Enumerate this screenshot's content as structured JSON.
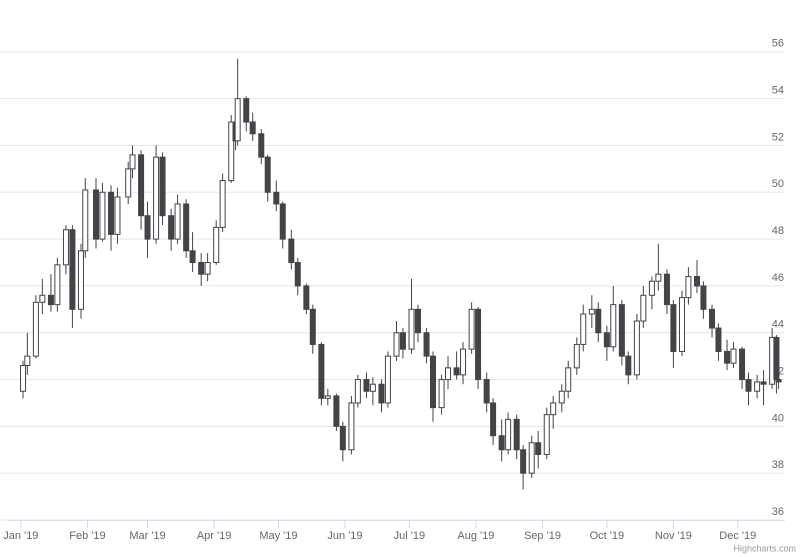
{
  "chart_data": {
    "type": "candlestick",
    "credits": "Highcharts.com",
    "xlim": [
      "2018-12-26",
      "2019-12-23"
    ],
    "xticks": [
      {
        "value": "2019-01-01",
        "label": "Jan '19"
      },
      {
        "value": "2019-02-01",
        "label": "Feb '19"
      },
      {
        "value": "2019-03-01",
        "label": "Mar '19"
      },
      {
        "value": "2019-04-01",
        "label": "Apr '19"
      },
      {
        "value": "2019-05-01",
        "label": "May '19"
      },
      {
        "value": "2019-06-01",
        "label": "Jun '19"
      },
      {
        "value": "2019-07-01",
        "label": "Jul '19"
      },
      {
        "value": "2019-08-01",
        "label": "Aug '19"
      },
      {
        "value": "2019-09-01",
        "label": "Sep '19"
      },
      {
        "value": "2019-10-01",
        "label": "Oct '19"
      },
      {
        "value": "2019-11-01",
        "label": "Nov '19"
      },
      {
        "value": "2019-12-01",
        "label": "Dec '19"
      }
    ],
    "ylim": [
      36,
      58
    ],
    "yticks": [
      36,
      38,
      40,
      42,
      44,
      46,
      48,
      50,
      52,
      54,
      56
    ],
    "grid": true,
    "up_color": "#ffffff",
    "down_color": "#434348",
    "line_color": "#434348",
    "x": [
      "2019-01-02",
      "2019-01-04",
      "2019-01-08",
      "2019-01-11",
      "2019-01-15",
      "2019-01-18",
      "2019-01-22",
      "2019-01-25",
      "2019-01-29",
      "2019-01-31",
      "2019-02-05",
      "2019-02-08",
      "2019-02-12",
      "2019-02-15",
      "2019-02-20",
      "2019-02-22",
      "2019-02-26",
      "2019-03-01",
      "2019-03-05",
      "2019-03-08",
      "2019-03-12",
      "2019-03-15",
      "2019-03-19",
      "2019-03-22",
      "2019-03-26",
      "2019-03-29",
      "2019-04-02",
      "2019-04-05",
      "2019-04-09",
      "2019-04-11",
      "2019-04-12",
      "2019-04-16",
      "2019-04-19",
      "2019-04-23",
      "2019-04-26",
      "2019-04-30",
      "2019-05-03",
      "2019-05-07",
      "2019-05-10",
      "2019-05-14",
      "2019-05-17",
      "2019-05-21",
      "2019-05-24",
      "2019-05-28",
      "2019-05-31",
      "2019-06-04",
      "2019-06-07",
      "2019-06-11",
      "2019-06-14",
      "2019-06-18",
      "2019-06-21",
      "2019-06-25",
      "2019-06-28",
      "2019-07-02",
      "2019-07-05",
      "2019-07-09",
      "2019-07-12",
      "2019-07-16",
      "2019-07-19",
      "2019-07-23",
      "2019-07-26",
      "2019-07-30",
      "2019-08-02",
      "2019-08-06",
      "2019-08-09",
      "2019-08-13",
      "2019-08-16",
      "2019-08-20",
      "2019-08-23",
      "2019-08-27",
      "2019-08-30",
      "2019-09-03",
      "2019-09-06",
      "2019-09-10",
      "2019-09-13",
      "2019-09-17",
      "2019-09-20",
      "2019-09-24",
      "2019-09-27",
      "2019-10-01",
      "2019-10-04",
      "2019-10-08",
      "2019-10-11",
      "2019-10-15",
      "2019-10-18",
      "2019-10-22",
      "2019-10-25",
      "2019-10-29",
      "2019-11-01",
      "2019-11-05",
      "2019-11-08",
      "2019-11-12",
      "2019-11-15",
      "2019-11-19",
      "2019-11-22",
      "2019-11-26",
      "2019-11-29",
      "2019-12-03",
      "2019-12-06",
      "2019-12-10",
      "2019-12-13",
      "2019-12-17",
      "2019-12-19",
      "2019-12-20"
    ],
    "open": [
      41.5,
      42.6,
      43.0,
      45.3,
      45.6,
      45.2,
      46.9,
      48.4,
      45.0,
      47.5,
      50.1,
      48.0,
      50.0,
      48.2,
      49.8,
      51.0,
      51.6,
      49.0,
      48.0,
      51.5,
      49.0,
      48.0,
      49.5,
      47.5,
      47.0,
      46.5,
      47.0,
      48.5,
      50.5,
      53.0,
      52.2,
      54.0,
      53.0,
      52.5,
      51.5,
      50.0,
      49.5,
      48.0,
      47.0,
      46.0,
      45.0,
      43.5,
      41.2,
      41.3,
      40.0,
      39.0,
      41.0,
      42.0,
      41.5,
      41.8,
      41.0,
      43.0,
      44.0,
      43.3,
      45.0,
      44.0,
      43.0,
      40.8,
      42.0,
      42.5,
      42.2,
      43.3,
      45.0,
      42.0,
      41.0,
      39.6,
      39.0,
      40.3,
      39.0,
      38.0,
      39.3,
      38.8,
      40.5,
      41.0,
      41.5,
      42.5,
      43.5,
      44.8,
      45.0,
      44.0,
      43.4,
      45.2,
      43.0,
      42.2,
      44.5,
      45.6,
      46.2,
      46.5,
      45.2,
      43.2,
      45.5,
      46.4,
      46.0,
      45.0,
      44.2,
      43.2,
      42.7,
      43.3,
      42.0,
      41.5,
      41.9,
      41.8,
      43.8,
      42.0
    ],
    "high": [
      42.8,
      44.0,
      45.6,
      46.3,
      46.5,
      47.2,
      48.6,
      48.6,
      47.8,
      50.6,
      50.6,
      50.4,
      50.3,
      50.2,
      51.3,
      52.0,
      51.8,
      49.6,
      52.0,
      51.7,
      49.3,
      49.9,
      49.7,
      48.3,
      47.4,
      47.4,
      48.8,
      50.8,
      53.3,
      53.4,
      55.7,
      54.1,
      53.4,
      52.7,
      51.6,
      50.5,
      49.6,
      48.4,
      47.2,
      46.1,
      45.2,
      43.6,
      41.6,
      41.4,
      40.2,
      41.3,
      42.2,
      42.3,
      42.1,
      42.0,
      43.2,
      44.5,
      44.2,
      46.3,
      45.2,
      44.2,
      43.2,
      42.2,
      43.0,
      43.2,
      43.6,
      45.3,
      45.1,
      42.3,
      41.2,
      40.3,
      40.6,
      40.5,
      39.2,
      39.6,
      39.8,
      40.8,
      41.3,
      41.8,
      42.8,
      43.8,
      45.2,
      45.6,
      45.3,
      44.3,
      46.0,
      45.4,
      43.2,
      44.8,
      46.0,
      46.4,
      47.8,
      46.7,
      45.4,
      45.8,
      46.8,
      47.1,
      46.2,
      45.2,
      44.4,
      43.7,
      43.6,
      43.4,
      42.3,
      42.2,
      42.4,
      44.2,
      43.9,
      42.3
    ],
    "low": [
      41.2,
      42.2,
      42.9,
      44.8,
      44.9,
      44.9,
      46.5,
      44.2,
      44.6,
      47.2,
      47.6,
      47.9,
      47.5,
      47.8,
      49.5,
      50.6,
      48.4,
      47.2,
      47.8,
      48.6,
      47.5,
      47.8,
      47.2,
      46.6,
      46.0,
      46.2,
      46.9,
      48.3,
      50.4,
      51.8,
      52.0,
      52.6,
      52.2,
      51.2,
      49.6,
      49.2,
      47.6,
      46.7,
      45.6,
      44.8,
      43.1,
      40.9,
      40.9,
      39.8,
      38.5,
      38.8,
      40.8,
      41.2,
      40.9,
      40.6,
      40.8,
      42.8,
      42.9,
      43.1,
      43.6,
      42.7,
      40.2,
      40.5,
      41.6,
      42.0,
      41.8,
      43.1,
      41.6,
      40.6,
      39.2,
      38.5,
      38.8,
      38.6,
      37.3,
      37.8,
      38.2,
      38.6,
      39.9,
      40.6,
      41.2,
      42.2,
      43.2,
      44.2,
      43.6,
      42.8,
      43.2,
      42.6,
      41.8,
      42.0,
      44.2,
      45.0,
      45.8,
      44.8,
      42.5,
      43.0,
      45.2,
      45.7,
      44.6,
      43.8,
      42.8,
      42.4,
      42.5,
      41.6,
      40.9,
      41.2,
      40.9,
      41.6,
      41.4,
      41.6
    ],
    "close": [
      42.6,
      43.0,
      45.3,
      45.6,
      45.2,
      46.9,
      48.4,
      45.0,
      47.5,
      50.1,
      48.0,
      50.0,
      48.2,
      49.8,
      51.0,
      51.6,
      49.0,
      48.0,
      51.5,
      49.0,
      48.0,
      49.5,
      47.5,
      47.0,
      46.5,
      47.0,
      48.5,
      50.5,
      53.0,
      52.2,
      54.0,
      53.0,
      52.5,
      51.5,
      50.0,
      49.5,
      48.0,
      47.0,
      46.0,
      45.0,
      43.5,
      41.2,
      41.3,
      40.0,
      39.0,
      41.0,
      42.0,
      41.5,
      41.8,
      41.0,
      43.0,
      44.0,
      43.3,
      45.0,
      44.0,
      43.0,
      40.8,
      42.0,
      42.5,
      42.2,
      43.3,
      45.0,
      42.0,
      41.0,
      39.6,
      39.0,
      40.3,
      39.0,
      38.0,
      39.3,
      38.8,
      40.5,
      41.0,
      41.5,
      42.5,
      43.5,
      44.8,
      45.0,
      44.0,
      43.4,
      45.2,
      43.0,
      42.2,
      44.5,
      45.6,
      46.2,
      46.5,
      45.2,
      43.2,
      45.5,
      46.4,
      46.0,
      45.0,
      44.2,
      43.2,
      42.7,
      43.3,
      42.0,
      41.5,
      41.9,
      41.8,
      43.8,
      42.0,
      41.9
    ]
  }
}
